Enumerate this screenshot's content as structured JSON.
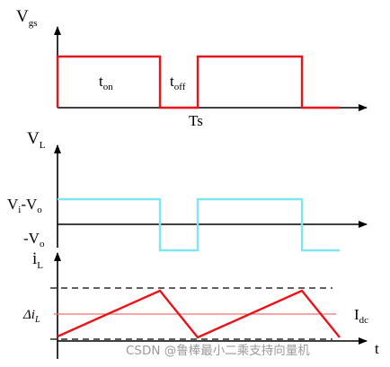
{
  "colors": {
    "gate": "#e8141c",
    "inductor_voltage": "#7fe6ef",
    "inductor_current": "#e8141c",
    "dc_level": "#f07070",
    "axes": "#000000",
    "dashed": "#000000"
  },
  "panel_gate": {
    "y_label": {
      "main": "V",
      "sub": "gs"
    },
    "ton_label": {
      "main": "t",
      "sub": "on"
    },
    "toff_label": {
      "main": "t",
      "sub": "off"
    },
    "period_label": "Ts"
  },
  "panel_voltage": {
    "y_label": {
      "main": "V",
      "sub": "L"
    },
    "high_label": {
      "p1": "V",
      "s1": "i",
      "p2": "-V",
      "s2": "o"
    },
    "low_label": {
      "p1": "-V",
      "s1": "o"
    }
  },
  "panel_current": {
    "y_label": {
      "main": "i",
      "sub": "L"
    },
    "ripple_label": {
      "main": "Δi",
      "sub": "L"
    },
    "dc_label": {
      "main": "I",
      "sub": "dc"
    },
    "time_label": "t"
  },
  "watermark": "CSDN @鲁棒最小二乘支持向量机"
}
